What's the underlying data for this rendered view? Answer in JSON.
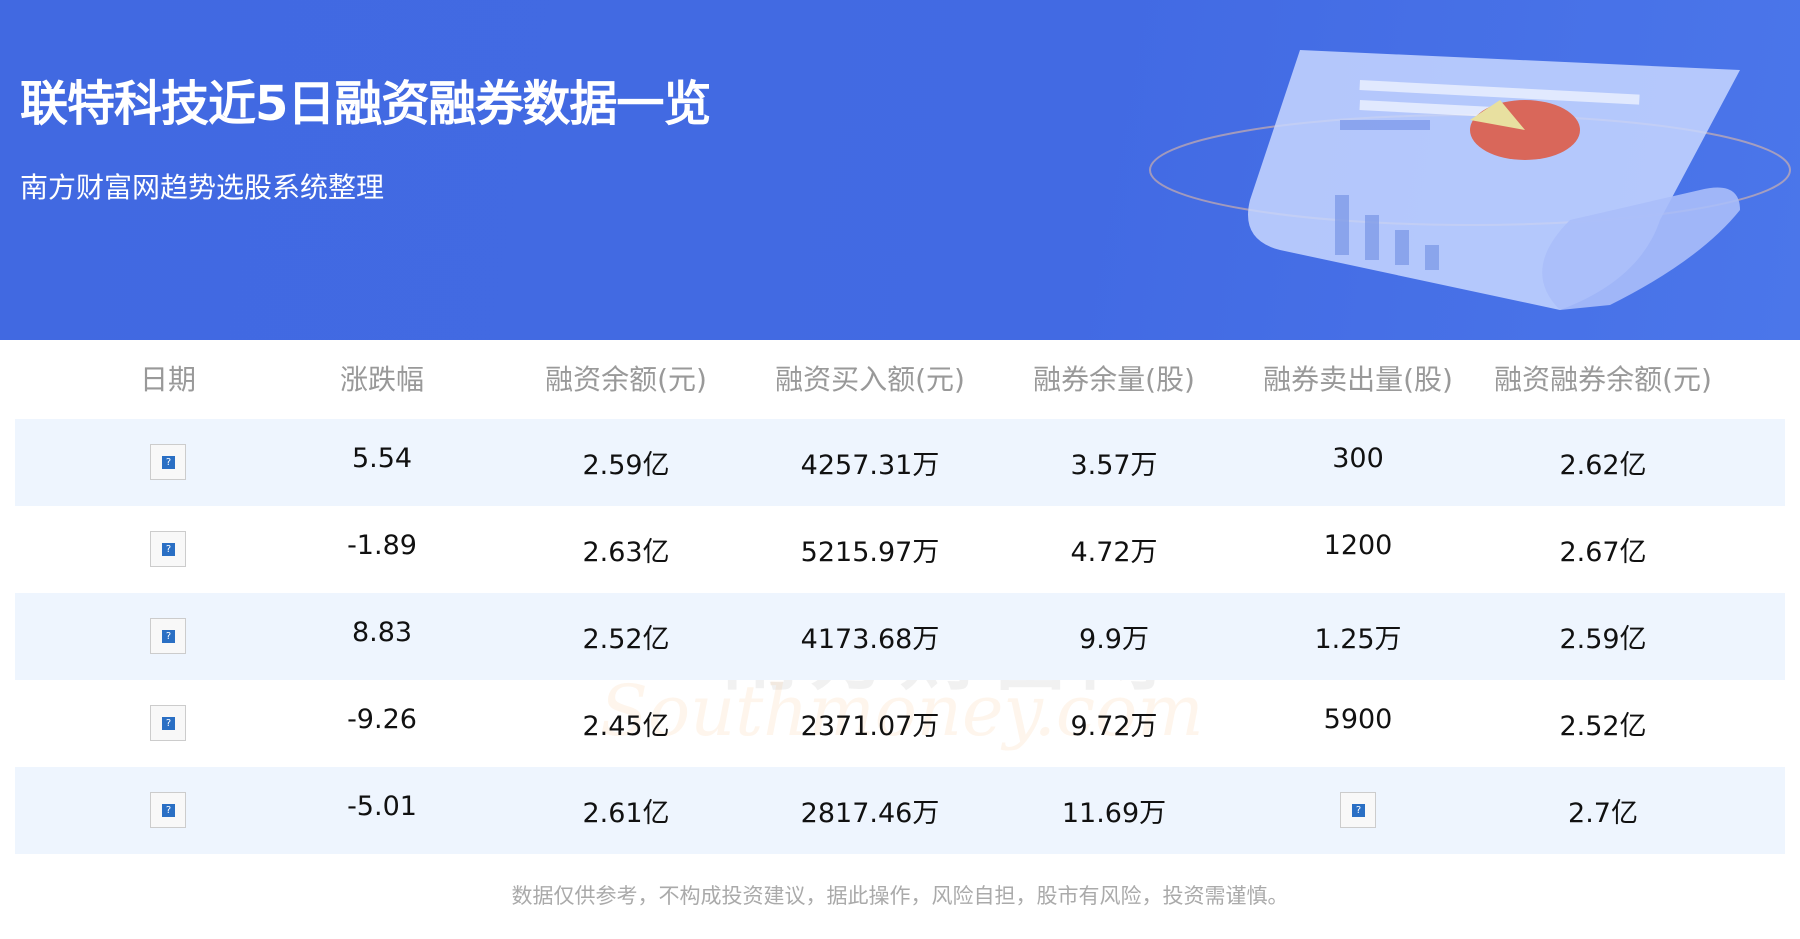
{
  "header": {
    "title": "联特科技近5日融资融券数据一览",
    "subtitle": "南方财富网趋势选股系统整理"
  },
  "table": {
    "columns": [
      "日期",
      "涨跌幅",
      "融资余额(元)",
      "融资买入额(元)",
      "融券余量(股)",
      "融券卖出量(股)",
      "融资融券余额(元)"
    ],
    "rows": [
      [
        "broken-image",
        "5.54",
        "2.59亿",
        "4257.31万",
        "3.57万",
        "300",
        "2.62亿"
      ],
      [
        "broken-image",
        "-1.89",
        "2.63亿",
        "5215.97万",
        "4.72万",
        "1200",
        "2.67亿"
      ],
      [
        "broken-image",
        "8.83",
        "2.52亿",
        "4173.68万",
        "9.9万",
        "1.25万",
        "2.59亿"
      ],
      [
        "broken-image",
        "-9.26",
        "2.45亿",
        "2371.07万",
        "9.72万",
        "5900",
        "2.52亿"
      ],
      [
        "broken-image",
        "-5.01",
        "2.61亿",
        "2817.46万",
        "11.69万",
        "broken-image",
        "2.7亿"
      ]
    ]
  },
  "watermark": {
    "cn": "南方财富网",
    "en": "Southmoney.com"
  },
  "footer": "数据仅供参考，不构成投资建议，据此操作，风险自担，股市有风险，投资需谨慎。",
  "colors": {
    "header_bg": "#4169e1",
    "row_alt": "#eef5fe"
  }
}
